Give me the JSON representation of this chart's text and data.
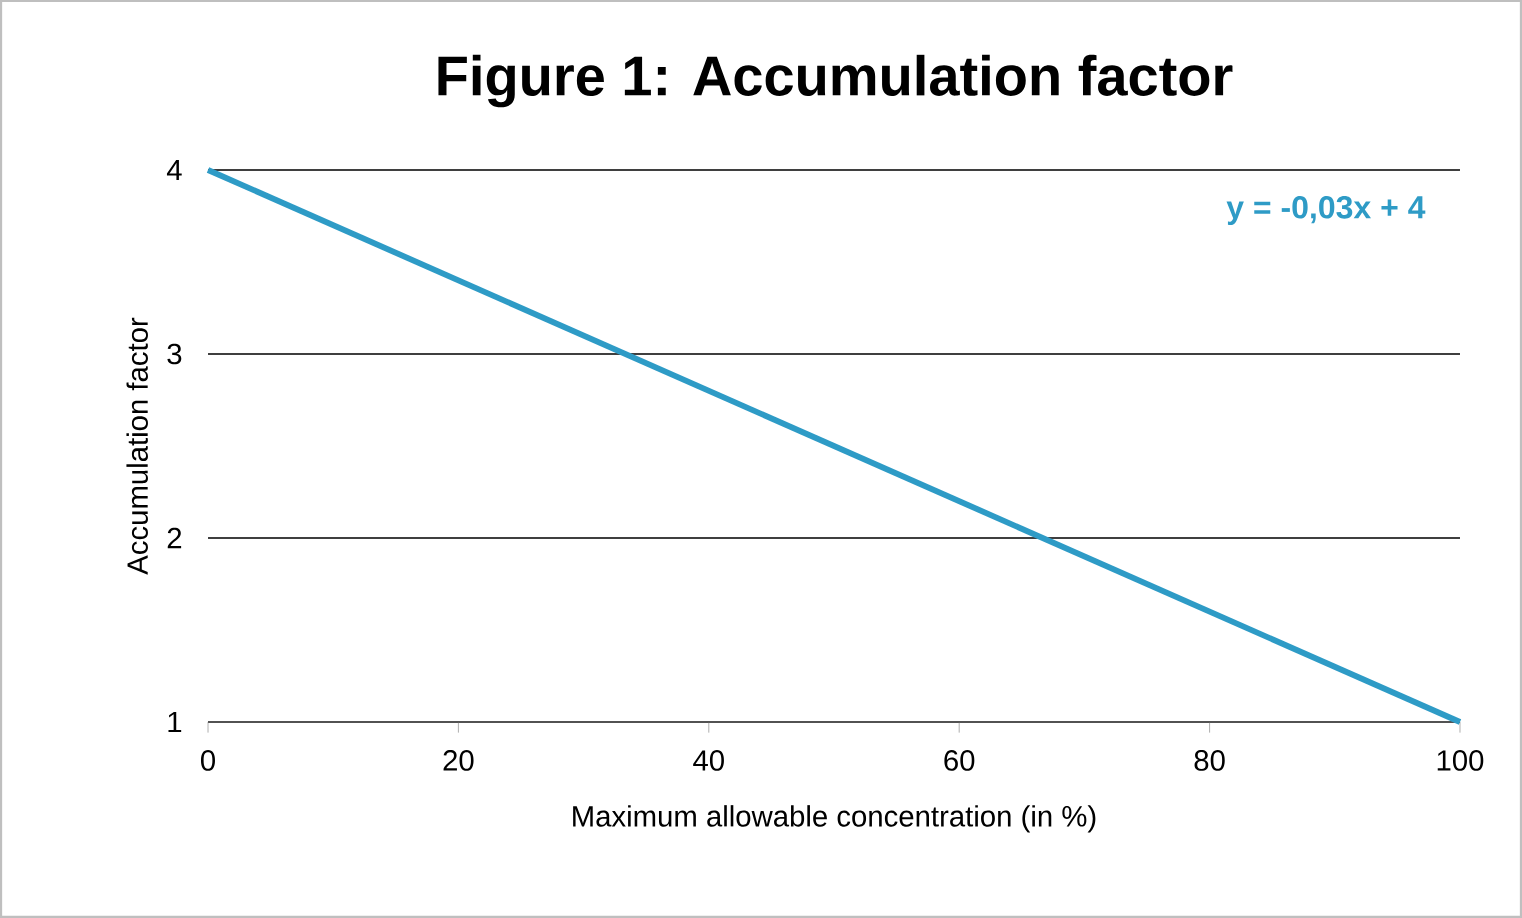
{
  "chart_data": {
    "type": "line",
    "title": "Figure 1: Accumulation factor",
    "xlabel": "Maximum allowable concentration (in %)",
    "ylabel": "Accumulation factor",
    "x": [
      0,
      100
    ],
    "series": [
      {
        "color": "#2e9bc6",
        "values": [
          4,
          1
        ]
      }
    ],
    "xlim": [
      0,
      100
    ],
    "ylim": [
      1,
      4
    ],
    "xticks": [
      0,
      20,
      40,
      60,
      80,
      100
    ],
    "yticks": [
      1,
      2,
      3,
      4
    ],
    "grid": "y",
    "marker": "none",
    "line_style": "solid",
    "annotations": [
      "y = -0,03x + 4"
    ]
  }
}
